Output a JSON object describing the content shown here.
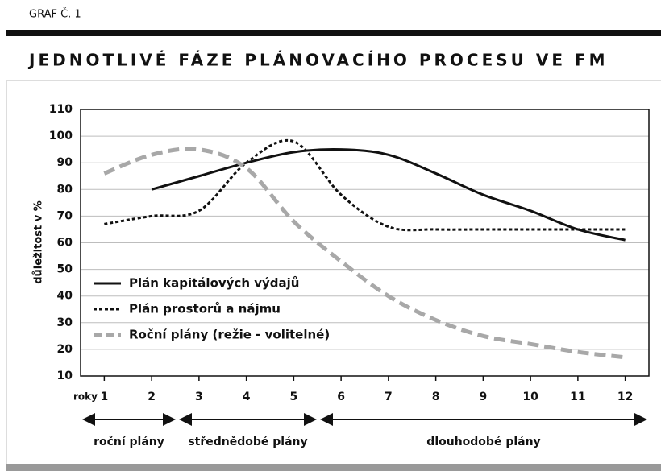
{
  "header": "GRAF Č. 1",
  "chart_data": {
    "type": "line",
    "title": "JEDNOTLIVÉ FÁZE PLÁNOVACÍHO PROCESU VE FM",
    "y_label": "důležitost v %",
    "x_label": "roky",
    "x": [
      1,
      2,
      3,
      4,
      5,
      6,
      7,
      8,
      9,
      10,
      11,
      12
    ],
    "xlim": [
      0.5,
      12.5
    ],
    "xticks": [
      1,
      2,
      3,
      4,
      5,
      6,
      7,
      8,
      9,
      10,
      11,
      12
    ],
    "ylim": [
      10,
      110
    ],
    "yticks": [
      10,
      20,
      30,
      40,
      50,
      60,
      70,
      80,
      90,
      100,
      110
    ],
    "grid": true,
    "series": [
      {
        "name": "Plán kapitálových výdajů",
        "color": "#111111",
        "style": "solid",
        "values": [
          null,
          80,
          85,
          90,
          94,
          95,
          93,
          86,
          78,
          72,
          65,
          61
        ]
      },
      {
        "name": "Plán prostorů a nájmu",
        "color": "#111111",
        "style": "dotted",
        "values": [
          67,
          70,
          72,
          90,
          98,
          78,
          66,
          65,
          65,
          65,
          65,
          65
        ]
      },
      {
        "name": "Roční plány (režie - volitelné)",
        "color": "#a8a8a8",
        "style": "dashed",
        "values": [
          86,
          93,
          95,
          88,
          68,
          53,
          40,
          31,
          25,
          22,
          19,
          17
        ]
      }
    ],
    "phases": [
      "roční plány",
      "střednědobé plány",
      "dlouhodobé plány"
    ]
  }
}
